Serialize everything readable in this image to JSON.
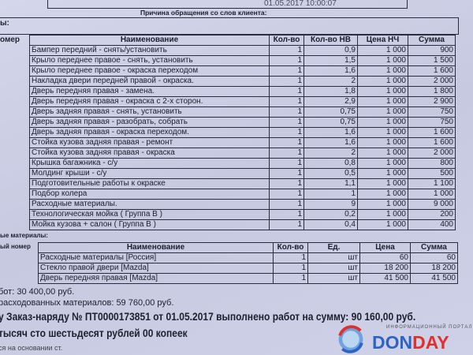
{
  "header": {
    "datetime": "01.05.2017 10:00:07",
    "reason_label": "Причина обращения со слов клиента:",
    "left_label": "ы:",
    "number_col": "омер"
  },
  "works": {
    "columns": [
      "Наименование",
      "Кол-во",
      "Кол-во НВ",
      "Цена НЧ",
      "Сумма"
    ],
    "rows": [
      [
        "Бампер передний - снять/установить",
        "1",
        "0,9",
        "1 000",
        "900"
      ],
      [
        "Крыло переднее правое - снять, установить",
        "1",
        "1,5",
        "1 000",
        "1 500"
      ],
      [
        "Крыло переднее правое - окраска переходом",
        "1",
        "1,6",
        "1 000",
        "1 600"
      ],
      [
        "Накладка двери передней правой - окраска.",
        "1",
        "2",
        "1 000",
        "2 000"
      ],
      [
        "Дверь передняя правая - замена.",
        "1",
        "1,8",
        "1 000",
        "1 800"
      ],
      [
        "Дверь передняя правая - окраска с 2-х сторон.",
        "1",
        "2,9",
        "1 000",
        "2 900"
      ],
      [
        "Дверь задняя правая - снять, установить",
        "1",
        "0,75",
        "1 000",
        "750"
      ],
      [
        "Дверь задняя правая - разобрать, собрать",
        "1",
        "0,75",
        "1 000",
        "750"
      ],
      [
        "Дверь задняя правая - окраска переходом.",
        "1",
        "1,6",
        "1 000",
        "1 600"
      ],
      [
        "Стойка кузова задняя правая - ремонт",
        "1",
        "1,6",
        "1 000",
        "1 600"
      ],
      [
        "Стойка кузова задняя правая - окраска",
        "1",
        "2",
        "1 000",
        "2 000"
      ],
      [
        "Крышка багажника - с/у",
        "1",
        "0,8",
        "1 000",
        "800"
      ],
      [
        "Молдинг крыши - с/у",
        "1",
        "0,5",
        "1 000",
        "500"
      ],
      [
        "Подготовительные работы к окраске",
        "1",
        "1,1",
        "1 000",
        "1 100"
      ],
      [
        "Подбор колера",
        "1",
        "1",
        "1 000",
        "1 000"
      ],
      [
        "Расходные материалы.",
        "1",
        "9",
        "1 000",
        "9 000"
      ],
      [
        "Технологическая мойка ( Группа В )",
        "1",
        "0,2",
        "1 000",
        "200"
      ],
      [
        "Мойка кузова + салон ( Группа В )",
        "1",
        "0,4",
        "1 000",
        "400"
      ]
    ]
  },
  "materials": {
    "section_label": "ые материалы:",
    "number_col": "ый номер",
    "columns": [
      "Наименование",
      "Кол-во",
      "Ед.",
      "Цена",
      "Сумма"
    ],
    "rows": [
      [
        "Расходные материалы [Россия]",
        "1",
        "шт",
        "60",
        "60"
      ],
      [
        "Стекло правой двери [Mazda]",
        "1",
        "шт",
        "18 200",
        "18 200"
      ],
      [
        "Дверь передняя правая [Mazda]",
        "1",
        "шт",
        "41 500",
        "41 500"
      ]
    ]
  },
  "totals": {
    "works": "бот: 30 400,00 руб.",
    "materials": "расходованных материалов: 59 760,00 руб.",
    "order_line": "у Заказ-наряду № ПТ0000173851 от 01.05.2017 выполнено работ на сумму: 90 160,00 руб.",
    "words_line": "тысяч сто шестьдесят рублей 00 копеек",
    "footnote": "ся на основании ст."
  },
  "watermark": {
    "portal": "ИНФОРМАЦИОННЫЙ ПОРТАЛ",
    "brand_a": "DON",
    "brand_b": "DAY",
    "color_a": "#2b63c9",
    "color_b": "#e0302b"
  }
}
